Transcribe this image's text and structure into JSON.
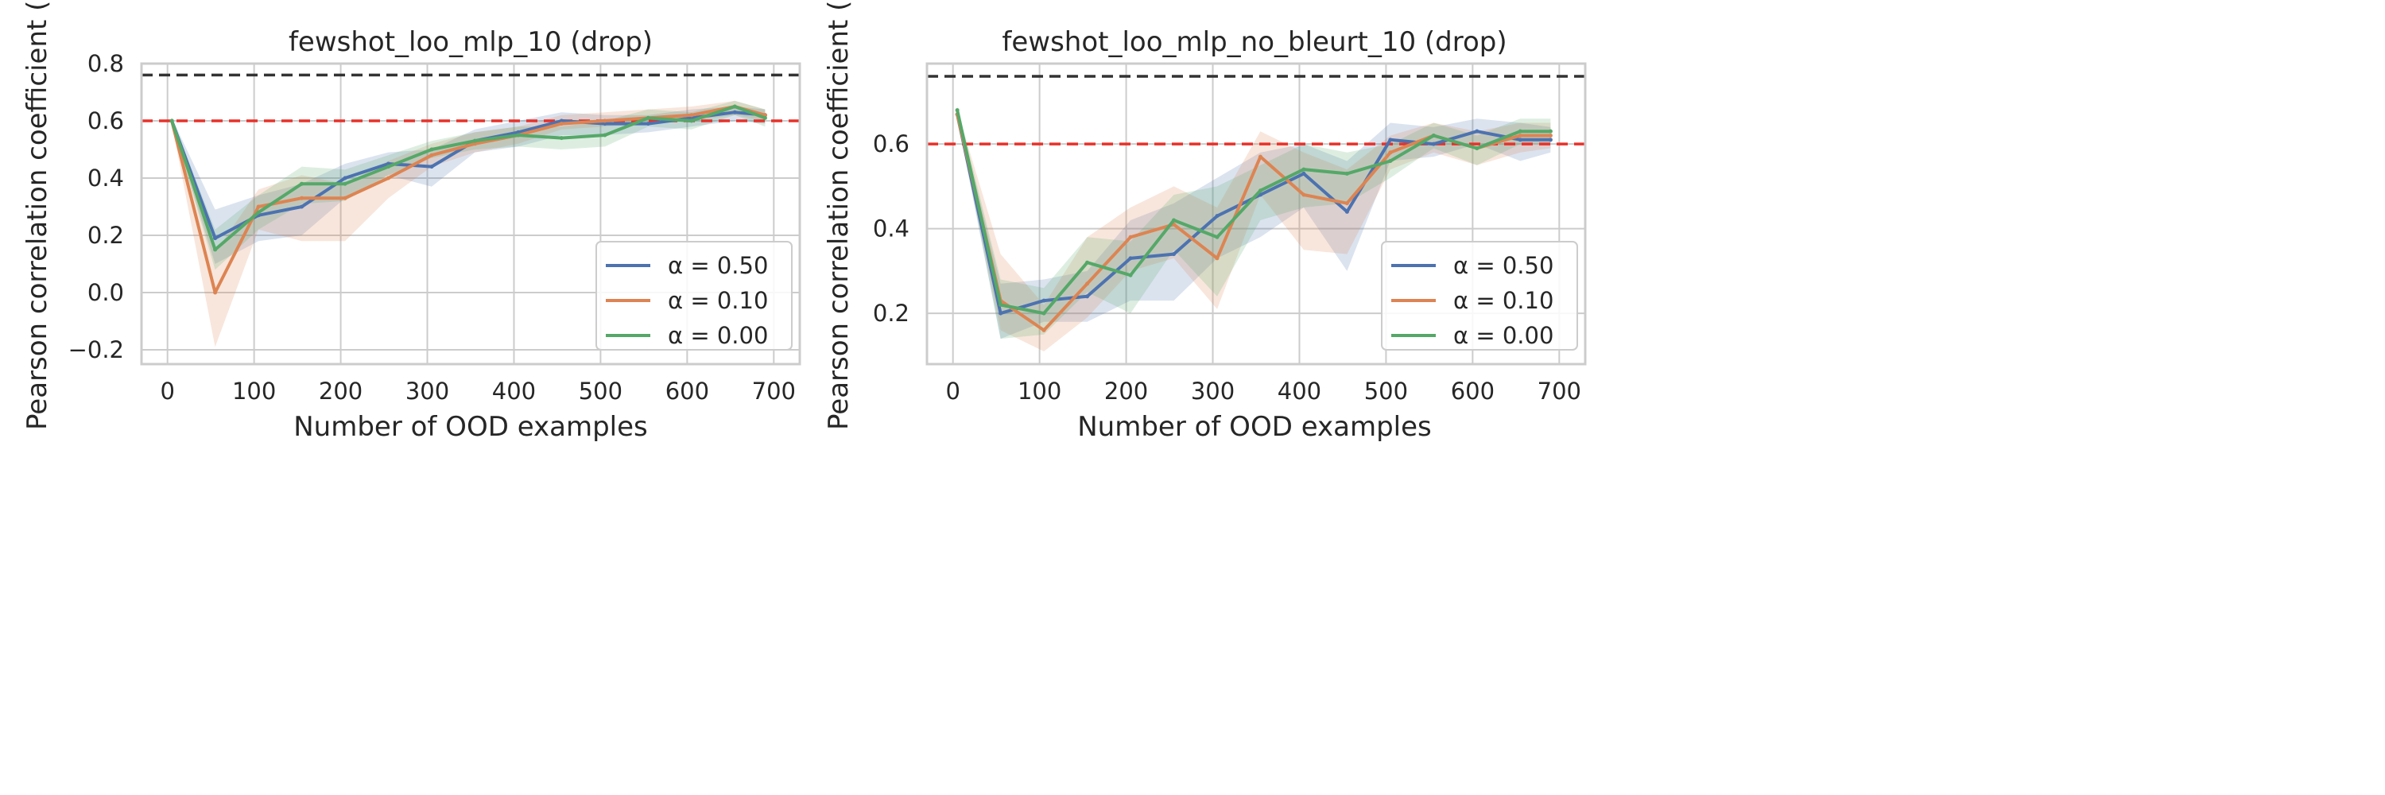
{
  "colors": {
    "blue": "#4c72b0",
    "orange": "#dd8452",
    "green": "#55a868",
    "ref_red": "#e8312a",
    "ref_black": "#333333",
    "grid": "#cccccc",
    "frame": "#cccccc"
  },
  "chart_data": [
    {
      "type": "line",
      "title": "fewshot_loo_mlp_10 (drop)",
      "xlabel": "Number of OOD examples",
      "ylabel": "Pearson correlation coefficient (ρ",
      "xlim": [
        -30,
        730
      ],
      "ylim": [
        -0.25,
        0.8
      ],
      "xticks": [
        0,
        100,
        200,
        300,
        400,
        500,
        600,
        700
      ],
      "yticks": [
        -0.2,
        0.0,
        0.2,
        0.4,
        0.6,
        0.8
      ],
      "ytick_labels": [
        "−0.2",
        "0.0",
        "0.2",
        "0.4",
        "0.6",
        "0.8"
      ],
      "grid": true,
      "legend_position": "lower-right",
      "reference_lines": [
        {
          "y": 0.76,
          "color": "ref_black",
          "style": "dashed"
        },
        {
          "y": 0.6,
          "color": "ref_red",
          "style": "dashed"
        }
      ],
      "x": [
        5,
        55,
        105,
        155,
        205,
        255,
        305,
        355,
        405,
        455,
        505,
        555,
        605,
        655,
        690
      ],
      "series": [
        {
          "name": "α = 0.50",
          "color": "blue",
          "values": [
            0.6,
            0.19,
            0.27,
            0.3,
            0.4,
            0.45,
            0.44,
            0.53,
            0.56,
            0.6,
            0.59,
            0.59,
            0.61,
            0.63,
            0.62
          ],
          "lower": [
            0.59,
            0.1,
            0.18,
            0.2,
            0.33,
            0.41,
            0.37,
            0.49,
            0.51,
            0.55,
            0.55,
            0.56,
            0.58,
            0.6,
            0.59
          ],
          "upper": [
            0.61,
            0.29,
            0.34,
            0.38,
            0.45,
            0.49,
            0.5,
            0.57,
            0.6,
            0.63,
            0.62,
            0.62,
            0.64,
            0.65,
            0.64
          ]
        },
        {
          "name": "α = 0.10",
          "color": "orange",
          "values": [
            0.6,
            0.0,
            0.3,
            0.33,
            0.33,
            0.4,
            0.48,
            0.52,
            0.55,
            0.59,
            0.6,
            0.61,
            0.62,
            0.65,
            0.62
          ],
          "lower": [
            0.59,
            -0.19,
            0.22,
            0.18,
            0.18,
            0.33,
            0.44,
            0.49,
            0.52,
            0.57,
            0.58,
            0.59,
            0.6,
            0.62,
            0.6
          ],
          "upper": [
            0.61,
            0.14,
            0.36,
            0.41,
            0.38,
            0.46,
            0.52,
            0.56,
            0.58,
            0.62,
            0.63,
            0.64,
            0.65,
            0.67,
            0.64
          ]
        },
        {
          "name": "α = 0.00",
          "color": "green",
          "values": [
            0.6,
            0.15,
            0.28,
            0.38,
            0.38,
            0.44,
            0.5,
            0.53,
            0.55,
            0.54,
            0.55,
            0.61,
            0.6,
            0.65,
            0.61
          ],
          "lower": [
            0.59,
            0.08,
            0.22,
            0.31,
            0.32,
            0.41,
            0.47,
            0.5,
            0.51,
            0.5,
            0.51,
            0.58,
            0.57,
            0.62,
            0.58
          ],
          "upper": [
            0.61,
            0.22,
            0.34,
            0.44,
            0.43,
            0.48,
            0.53,
            0.56,
            0.58,
            0.58,
            0.6,
            0.64,
            0.63,
            0.67,
            0.64
          ]
        }
      ]
    },
    {
      "type": "line",
      "title": "fewshot_loo_mlp_no_bleurt_10 (drop)",
      "xlabel": "Number of OOD examples",
      "ylabel": "Pearson correlation coefficient (ρ",
      "xlim": [
        -30,
        730
      ],
      "ylim": [
        0.08,
        0.79
      ],
      "xticks": [
        0,
        100,
        200,
        300,
        400,
        500,
        600,
        700
      ],
      "yticks": [
        0.2,
        0.4,
        0.6
      ],
      "ytick_labels": [
        "0.2",
        "0.4",
        "0.6"
      ],
      "grid": true,
      "legend_position": "lower-right",
      "reference_lines": [
        {
          "y": 0.76,
          "color": "ref_black",
          "style": "dashed"
        },
        {
          "y": 0.6,
          "color": "ref_red",
          "style": "dashed"
        }
      ],
      "x": [
        5,
        55,
        105,
        155,
        205,
        255,
        305,
        355,
        405,
        455,
        505,
        555,
        605,
        655,
        690
      ],
      "series": [
        {
          "name": "α = 0.50",
          "color": "blue",
          "values": [
            0.67,
            0.2,
            0.23,
            0.24,
            0.33,
            0.34,
            0.43,
            0.48,
            0.53,
            0.44,
            0.61,
            0.6,
            0.63,
            0.61,
            0.61
          ],
          "lower": [
            0.66,
            0.14,
            0.18,
            0.18,
            0.23,
            0.23,
            0.33,
            0.38,
            0.45,
            0.3,
            0.56,
            0.57,
            0.6,
            0.56,
            0.58
          ],
          "upper": [
            0.68,
            0.27,
            0.28,
            0.3,
            0.42,
            0.46,
            0.52,
            0.58,
            0.6,
            0.56,
            0.65,
            0.64,
            0.66,
            0.65,
            0.64
          ]
        },
        {
          "name": "α = 0.10",
          "color": "orange",
          "values": [
            0.67,
            0.23,
            0.16,
            0.27,
            0.38,
            0.41,
            0.33,
            0.57,
            0.48,
            0.46,
            0.58,
            0.62,
            0.59,
            0.62,
            0.62
          ],
          "lower": [
            0.66,
            0.16,
            0.11,
            0.19,
            0.3,
            0.33,
            0.21,
            0.48,
            0.35,
            0.34,
            0.54,
            0.58,
            0.55,
            0.58,
            0.59
          ],
          "upper": [
            0.68,
            0.34,
            0.22,
            0.38,
            0.45,
            0.5,
            0.45,
            0.63,
            0.58,
            0.54,
            0.62,
            0.65,
            0.63,
            0.65,
            0.65
          ]
        },
        {
          "name": "α = 0.00",
          "color": "green",
          "values": [
            0.68,
            0.22,
            0.2,
            0.32,
            0.29,
            0.42,
            0.38,
            0.49,
            0.54,
            0.53,
            0.56,
            0.62,
            0.59,
            0.63,
            0.63
          ],
          "lower": [
            0.67,
            0.14,
            0.15,
            0.25,
            0.2,
            0.35,
            0.24,
            0.42,
            0.45,
            0.46,
            0.52,
            0.59,
            0.55,
            0.6,
            0.6
          ],
          "upper": [
            0.69,
            0.28,
            0.26,
            0.38,
            0.37,
            0.48,
            0.5,
            0.55,
            0.6,
            0.58,
            0.6,
            0.65,
            0.62,
            0.66,
            0.66
          ]
        }
      ]
    }
  ]
}
